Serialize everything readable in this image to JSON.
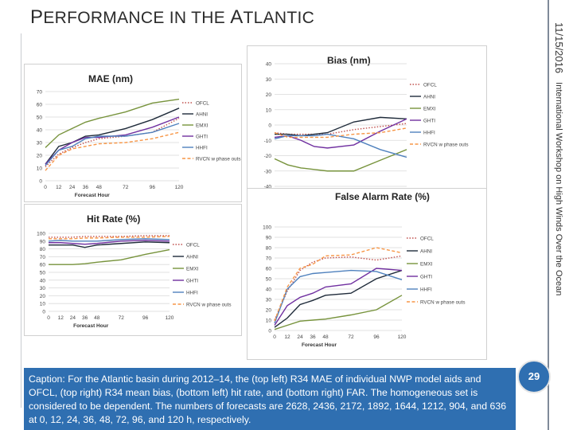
{
  "slide": {
    "title_first": "P",
    "title_rest1": "ERFORMANCE IN THE ",
    "title_a": "A",
    "title_rest2": "TLANTIC",
    "date": "11/15/2016",
    "sidebar": "International Workshop on High Winds Over the Ocean",
    "page_number": "29",
    "caption": "Caption: For the Atlantic basin during 2012–14, the (top left) R34 MAE of individual NWP model aids and OFCL, (top right) R34 mean bias, (bottom left) hit rate, and (bottom right) FAR. The homogeneous set is considered to be dependent. The numbers of forecasts are 2628, 2436, 2172, 1892, 1644, 1212, 904, and 636 at 0, 12, 24, 36, 48, 72, 96, and 120 h, respectively."
  },
  "colors": {
    "OFCL": "#c0504d",
    "AHNI": "#1f2b3a",
    "EMXI": "#77933c",
    "GHTI": "#7030a0",
    "HHFI": "#4f81bd",
    "RVCN": "#f79646",
    "caption_bg": "#2f6fb1"
  },
  "chart_data": [
    {
      "type": "line",
      "title": "MAE (nm)",
      "xlabel": "Forecast Hour",
      "x": [
        0,
        12,
        24,
        36,
        48,
        72,
        96,
        120
      ],
      "ylim": [
        0,
        70
      ],
      "yticks": [
        0,
        10,
        20,
        30,
        40,
        50,
        60,
        70
      ],
      "grid": true,
      "legend": "right",
      "series": [
        {
          "name": "OFCL",
          "style": "dotted",
          "values": [
            11,
            21,
            26,
            30,
            33,
            35,
            38,
            49
          ]
        },
        {
          "name": "AHNI",
          "style": "solid",
          "values": [
            13,
            27,
            30,
            35,
            36,
            41,
            48,
            57
          ]
        },
        {
          "name": "EMXI",
          "style": "solid",
          "values": [
            26,
            36,
            41,
            46,
            49,
            54,
            61,
            64
          ]
        },
        {
          "name": "GHTI",
          "style": "solid",
          "values": [
            13,
            24,
            30,
            34,
            34,
            36,
            42,
            50
          ]
        },
        {
          "name": "HHFI",
          "style": "solid",
          "values": [
            12,
            24,
            27,
            33,
            35,
            35,
            38,
            45
          ]
        },
        {
          "name": "RVCN w phase outs",
          "style": "dashed",
          "values": [
            8,
            20,
            25,
            27,
            29,
            30,
            33,
            38
          ]
        }
      ]
    },
    {
      "type": "line",
      "title": "Bias (nm)",
      "xlabel": "Forecast Hour",
      "x": [
        0,
        12,
        24,
        36,
        48,
        72,
        96,
        120
      ],
      "ylim": [
        -40,
        40
      ],
      "yticks": [
        -40,
        -30,
        -20,
        -10,
        0,
        10,
        20,
        30,
        40
      ],
      "grid": true,
      "legend": "right",
      "series": [
        {
          "name": "OFCL",
          "style": "dotted",
          "values": [
            -5,
            -6,
            -6,
            -6,
            -6,
            -3,
            -1,
            1
          ]
        },
        {
          "name": "AHNI",
          "style": "solid",
          "values": [
            -6,
            -6,
            -7,
            -6,
            -5,
            2,
            5,
            4
          ]
        },
        {
          "name": "EMXI",
          "style": "solid",
          "values": [
            -22,
            -26,
            -28,
            -29,
            -30,
            -30,
            -23,
            -16
          ]
        },
        {
          "name": "GHTI",
          "style": "solid",
          "values": [
            -8,
            -7,
            -10,
            -14,
            -15,
            -13,
            -4,
            4
          ]
        },
        {
          "name": "HHFI",
          "style": "solid",
          "values": [
            -9,
            -7,
            -7,
            -7,
            -6,
            -9,
            -16,
            -21
          ]
        },
        {
          "name": "RVCN w phase outs",
          "style": "dashed",
          "values": [
            -5,
            -8,
            -8,
            -8,
            -8,
            -6,
            -5,
            -2
          ]
        }
      ]
    },
    {
      "type": "line",
      "title": "Hit Rate (%)",
      "xlabel": "Forecast Hour",
      "x": [
        0,
        12,
        24,
        36,
        48,
        72,
        96,
        120
      ],
      "ylim": [
        0,
        100
      ],
      "yticks": [
        0,
        10,
        20,
        30,
        40,
        50,
        60,
        70,
        80,
        90,
        100
      ],
      "grid": true,
      "legend": "right",
      "series": [
        {
          "name": "OFCL",
          "style": "dotted",
          "values": [
            95,
            95,
            95,
            96,
            96,
            96,
            97,
            97
          ]
        },
        {
          "name": "AHNI",
          "style": "solid",
          "values": [
            85,
            85,
            85,
            82,
            85,
            87,
            89,
            88
          ]
        },
        {
          "name": "EMXI",
          "style": "solid",
          "values": [
            60,
            60,
            60,
            61,
            63,
            66,
            73,
            79
          ]
        },
        {
          "name": "GHTI",
          "style": "solid",
          "values": [
            88,
            88,
            87,
            86,
            87,
            90,
            91,
            90
          ]
        },
        {
          "name": "HHFI",
          "style": "solid",
          "values": [
            90,
            91,
            90,
            90,
            90,
            92,
            93,
            92
          ]
        },
        {
          "name": "RVCN w phase outs",
          "style": "dashed",
          "values": [
            93,
            93,
            93,
            94,
            94,
            95,
            95,
            96
          ]
        }
      ]
    },
    {
      "type": "line",
      "title": "False Alarm Rate (%)",
      "xlabel": "Forecast Hour",
      "x": [
        0,
        12,
        24,
        36,
        48,
        72,
        96,
        120
      ],
      "ylim": [
        0,
        100
      ],
      "yticks": [
        0,
        10,
        20,
        30,
        40,
        50,
        60,
        70,
        80,
        90,
        100
      ],
      "grid": true,
      "legend": "right",
      "series": [
        {
          "name": "OFCL",
          "style": "dotted",
          "values": [
            10,
            38,
            58,
            66,
            70,
            71,
            68,
            72
          ]
        },
        {
          "name": "AHNI",
          "style": "solid",
          "values": [
            3,
            12,
            25,
            29,
            34,
            36,
            50,
            58
          ]
        },
        {
          "name": "EMXI",
          "style": "solid",
          "values": [
            1,
            5,
            9,
            10,
            11,
            15,
            20,
            34
          ]
        },
        {
          "name": "GHTI",
          "style": "solid",
          "values": [
            5,
            24,
            32,
            36,
            42,
            45,
            60,
            58
          ]
        },
        {
          "name": "HHFI",
          "style": "solid",
          "values": [
            7,
            40,
            52,
            55,
            56,
            58,
            57,
            49
          ]
        },
        {
          "name": "RVCN w phase outs",
          "style": "dashed",
          "values": [
            9,
            42,
            60,
            64,
            72,
            73,
            80,
            75
          ]
        }
      ]
    }
  ]
}
